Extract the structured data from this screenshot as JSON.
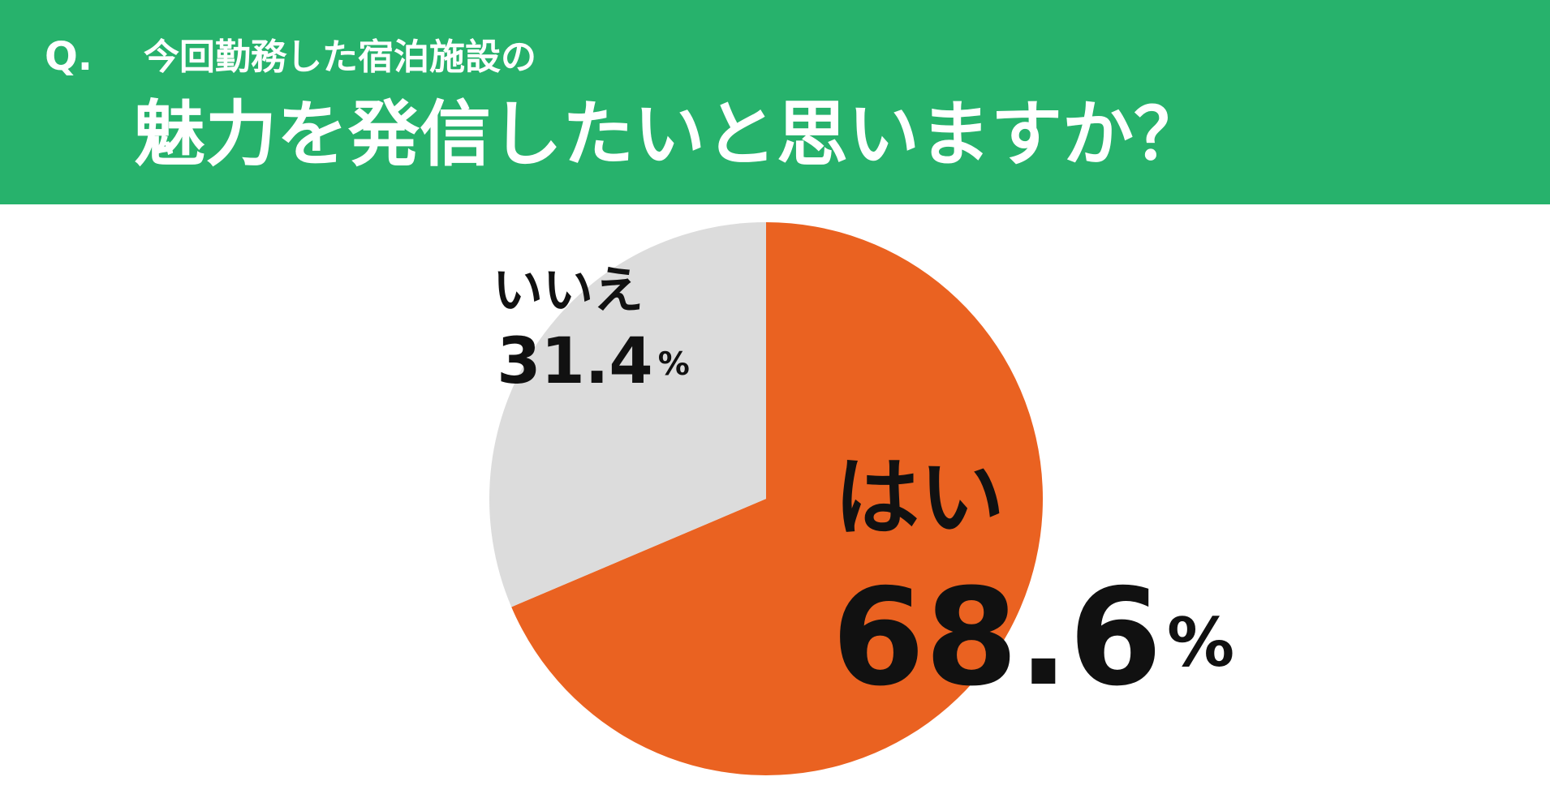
{
  "chart_data": {
    "type": "pie",
    "prefix": "Q.",
    "subtitle": "今回勤務した宿泊施設の",
    "title": "魅力を発信したいと思いますか？",
    "categories": [
      "はい",
      "いいえ"
    ],
    "values": [
      68.6,
      31.4
    ],
    "value_labels": [
      "68.6%",
      "31.4%"
    ],
    "colors": [
      "#ea6221",
      "#dcdcdc"
    ],
    "header_color": "#27b26c"
  }
}
